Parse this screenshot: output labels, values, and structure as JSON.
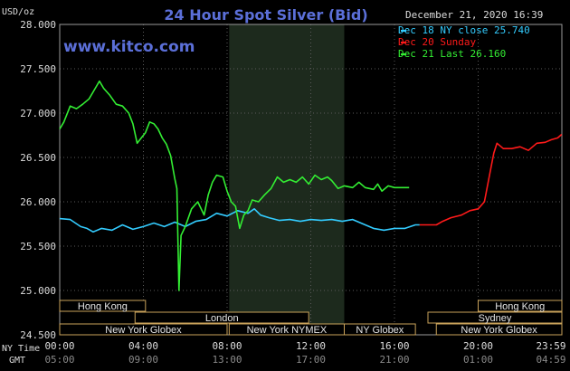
{
  "chart_data": {
    "type": "line",
    "title": "24 Hour Spot Silver (Bid)",
    "site": "www.kitco.com",
    "timestamp": "December 21, 2020 16:39",
    "ylabel": "USD/oz",
    "ylim": [
      24.5,
      28.0
    ],
    "y_ticks": [
      "28.000",
      "27.500",
      "27.000",
      "26.500",
      "26.000",
      "25.500",
      "25.000",
      "24.500"
    ],
    "x_ticks": [
      "00:00",
      "04:00",
      "08:00",
      "12:00",
      "16:00",
      "20:00",
      "23:59"
    ],
    "x_ticks_gmt": [
      "05:00",
      "09:00",
      "13:00",
      "17:00",
      "21:00",
      "01:00",
      "04:59"
    ],
    "row_label_ny": "NY Time",
    "row_label_gmt": "GMT",
    "colors": {
      "cyan": "#33ccff",
      "red": "#ff1a1a",
      "green": "#33ee33",
      "title": "#5b6fd8",
      "session": "#1d2a1d"
    },
    "legend": [
      {
        "label": "Dec 18 NY close 25.740",
        "color": "#33ccff"
      },
      {
        "label": "Dec 20 Sunday",
        "color": "#ff1a1a"
      },
      {
        "label": "Dec 21 Last 26.160",
        "color": "#33ee33"
      }
    ],
    "session": {
      "start_hour": 8.1,
      "end_hour": 13.6
    },
    "markets": [
      {
        "name": "Hong Kong",
        "start_hour": -3.0,
        "end_hour": 4.1,
        "row": 0
      },
      {
        "name": "Hong Kong",
        "start_hour": 20.0,
        "end_hour": 27.0,
        "row": 0
      },
      {
        "name": "London",
        "start_hour": 3.6,
        "end_hour": 11.9,
        "row": 1
      },
      {
        "name": "Sydney",
        "start_hour": 17.6,
        "end_hour": 26.0,
        "row": 1
      },
      {
        "name": "New York Globex",
        "start_hour": -3.0,
        "end_hour": 8.0,
        "row": 2
      },
      {
        "name": "New York NYMEX",
        "start_hour": 8.1,
        "end_hour": 13.6,
        "row": 2
      },
      {
        "name": "NY Globex",
        "start_hour": 13.6,
        "end_hour": 17.0,
        "row": 2
      },
      {
        "name": "New York Globex",
        "start_hour": 18.0,
        "end_hour": 27.0,
        "row": 2
      }
    ],
    "series": [
      {
        "name": "Dec 18 NY close 25.740",
        "color": "#33ccff",
        "points": [
          [
            0,
            25.81
          ],
          [
            0.5,
            25.8
          ],
          [
            1,
            25.72
          ],
          [
            1.3,
            25.7
          ],
          [
            1.6,
            25.66
          ],
          [
            2,
            25.7
          ],
          [
            2.5,
            25.68
          ],
          [
            3,
            25.74
          ],
          [
            3.5,
            25.69
          ],
          [
            4,
            25.72
          ],
          [
            4.5,
            25.76
          ],
          [
            5,
            25.72
          ],
          [
            5.5,
            25.77
          ],
          [
            6,
            25.72
          ],
          [
            6.5,
            25.78
          ],
          [
            7,
            25.8
          ],
          [
            7.5,
            25.87
          ],
          [
            8,
            25.84
          ],
          [
            8.5,
            25.9
          ],
          [
            9,
            25.87
          ],
          [
            9.3,
            25.92
          ],
          [
            9.6,
            25.85
          ],
          [
            10,
            25.82
          ],
          [
            10.5,
            25.79
          ],
          [
            11,
            25.8
          ],
          [
            11.5,
            25.78
          ],
          [
            12,
            25.8
          ],
          [
            12.5,
            25.79
          ],
          [
            13,
            25.8
          ],
          [
            13.5,
            25.78
          ],
          [
            14,
            25.8
          ],
          [
            14.5,
            25.75
          ],
          [
            15,
            25.7
          ],
          [
            15.5,
            25.68
          ],
          [
            16,
            25.7
          ],
          [
            16.5,
            25.7
          ],
          [
            17,
            25.74
          ],
          [
            17.2,
            25.74
          ]
        ]
      },
      {
        "name": "Dec 20 Sunday",
        "color": "#ff1a1a",
        "points": [
          [
            17.2,
            25.74
          ],
          [
            18,
            25.74
          ],
          [
            18.3,
            25.78
          ],
          [
            18.7,
            25.82
          ],
          [
            19.2,
            25.85
          ],
          [
            19.6,
            25.9
          ],
          [
            20,
            25.92
          ],
          [
            20.3,
            26.0
          ],
          [
            20.5,
            26.25
          ],
          [
            20.75,
            26.55
          ],
          [
            20.9,
            26.66
          ],
          [
            21.2,
            26.6
          ],
          [
            21.6,
            26.6
          ],
          [
            22,
            26.62
          ],
          [
            22.4,
            26.58
          ],
          [
            22.8,
            26.66
          ],
          [
            23.2,
            26.67
          ],
          [
            23.5,
            26.7
          ],
          [
            23.8,
            26.72
          ],
          [
            23.99,
            26.76
          ]
        ]
      },
      {
        "name": "Dec 21 Last 26.160",
        "color": "#33ee33",
        "points": [
          [
            0,
            26.82
          ],
          [
            0.2,
            26.9
          ],
          [
            0.5,
            27.08
          ],
          [
            0.8,
            27.05
          ],
          [
            1.1,
            27.1
          ],
          [
            1.4,
            27.16
          ],
          [
            1.6,
            27.24
          ],
          [
            1.8,
            27.32
          ],
          [
            1.9,
            27.36
          ],
          [
            2.1,
            27.28
          ],
          [
            2.4,
            27.2
          ],
          [
            2.7,
            27.1
          ],
          [
            3,
            27.08
          ],
          [
            3.3,
            27.0
          ],
          [
            3.5,
            26.88
          ],
          [
            3.7,
            26.66
          ],
          [
            3.9,
            26.72
          ],
          [
            4.1,
            26.78
          ],
          [
            4.3,
            26.9
          ],
          [
            4.5,
            26.88
          ],
          [
            4.7,
            26.82
          ],
          [
            4.9,
            26.72
          ],
          [
            5.1,
            26.65
          ],
          [
            5.3,
            26.52
          ],
          [
            5.5,
            26.26
          ],
          [
            5.6,
            26.15
          ],
          [
            5.7,
            25.0
          ],
          [
            5.8,
            25.62
          ],
          [
            6.0,
            25.72
          ],
          [
            6.3,
            25.92
          ],
          [
            6.6,
            26.0
          ],
          [
            6.9,
            25.85
          ],
          [
            7.1,
            26.08
          ],
          [
            7.3,
            26.22
          ],
          [
            7.5,
            26.3
          ],
          [
            7.8,
            26.28
          ],
          [
            8.0,
            26.12
          ],
          [
            8.2,
            26.0
          ],
          [
            8.4,
            25.95
          ],
          [
            8.6,
            25.7
          ],
          [
            8.8,
            25.85
          ],
          [
            9.0,
            25.9
          ],
          [
            9.2,
            26.02
          ],
          [
            9.5,
            26.0
          ],
          [
            9.8,
            26.08
          ],
          [
            10.1,
            26.15
          ],
          [
            10.4,
            26.28
          ],
          [
            10.7,
            26.22
          ],
          [
            11.0,
            26.25
          ],
          [
            11.3,
            26.22
          ],
          [
            11.6,
            26.28
          ],
          [
            11.9,
            26.2
          ],
          [
            12.2,
            26.3
          ],
          [
            12.5,
            26.25
          ],
          [
            12.8,
            26.28
          ],
          [
            13.0,
            26.24
          ],
          [
            13.3,
            26.15
          ],
          [
            13.6,
            26.18
          ],
          [
            14.0,
            26.16
          ],
          [
            14.3,
            26.22
          ],
          [
            14.6,
            26.16
          ],
          [
            15.0,
            26.14
          ],
          [
            15.2,
            26.2
          ],
          [
            15.4,
            26.12
          ],
          [
            15.7,
            26.18
          ],
          [
            16.0,
            26.16
          ],
          [
            16.4,
            26.16
          ],
          [
            16.7,
            26.16
          ]
        ]
      }
    ]
  }
}
